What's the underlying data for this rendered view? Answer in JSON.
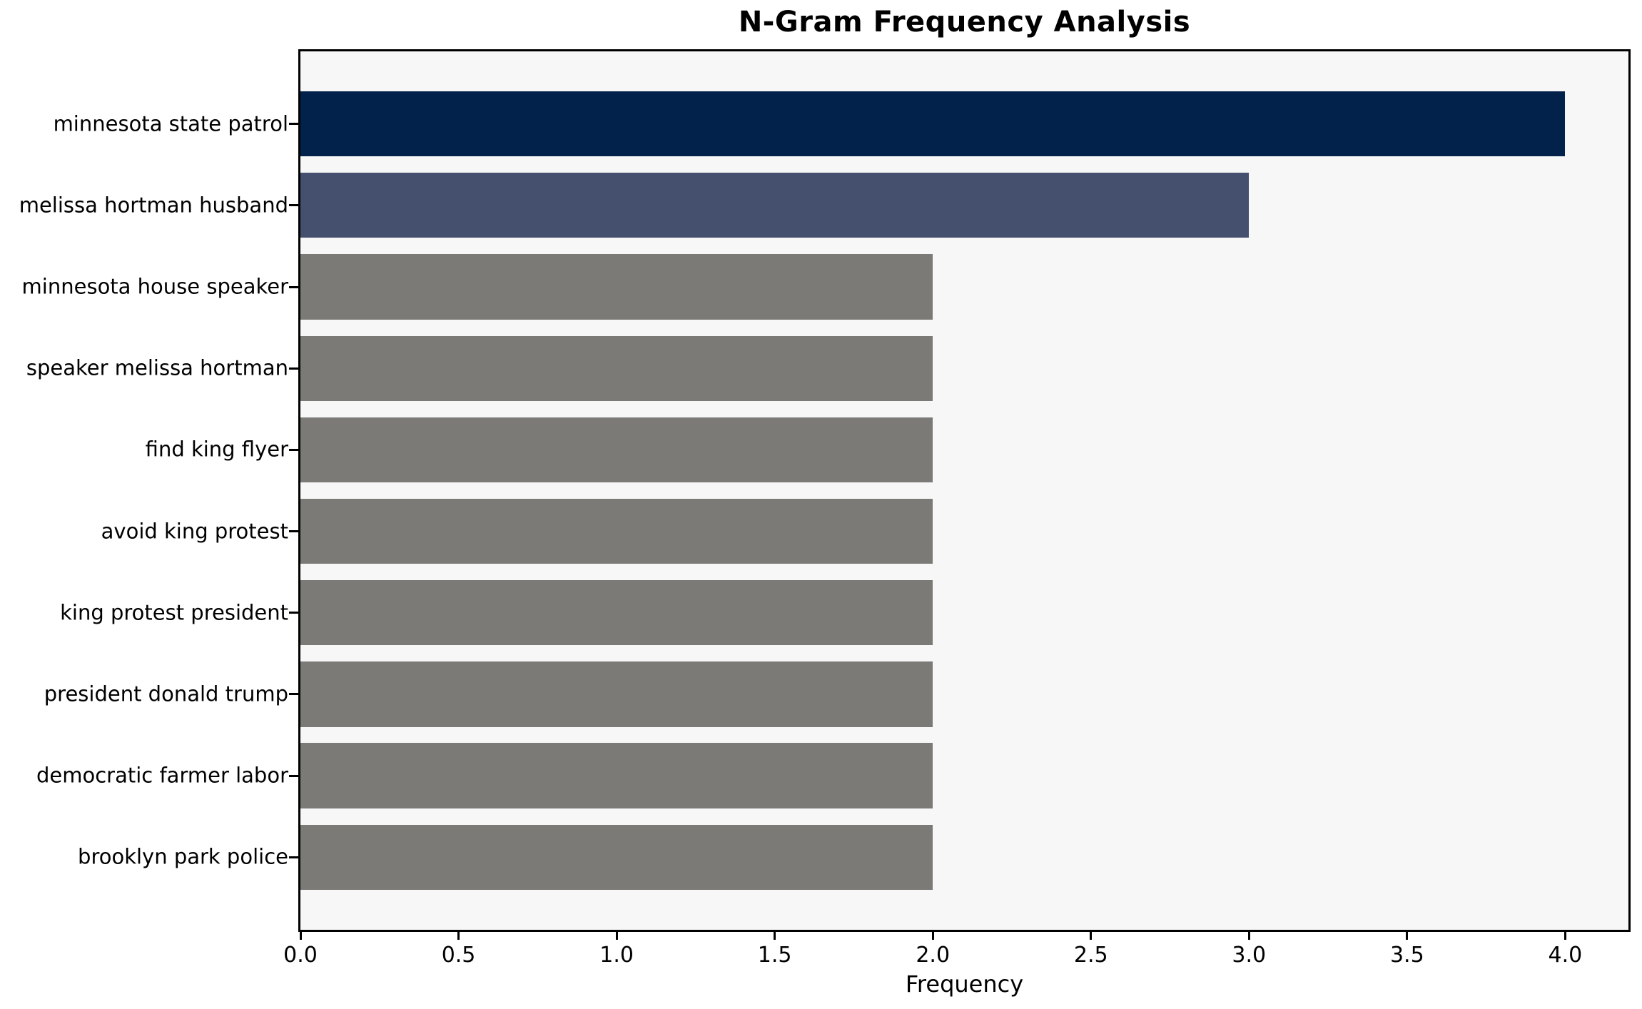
{
  "chart_data": {
    "type": "bar",
    "orientation": "horizontal",
    "title": "N-Gram Frequency Analysis",
    "xlabel": "Frequency",
    "ylabel": "",
    "categories": [
      "minnesota state patrol",
      "melissa hortman husband",
      "minnesota house speaker",
      "speaker melissa hortman",
      "find king flyer",
      "avoid king protest",
      "king protest president",
      "president donald trump",
      "democratic farmer labor",
      "brooklyn park police"
    ],
    "values": [
      4,
      3,
      2,
      2,
      2,
      2,
      2,
      2,
      2,
      2
    ],
    "colors": [
      "#02224c",
      "#45506e",
      "#7b7a77",
      "#7b7a77",
      "#7b7a77",
      "#7b7a77",
      "#7b7a77",
      "#7b7a77",
      "#7b7a77",
      "#7b7a77"
    ],
    "xlim": [
      0,
      4.2
    ],
    "xticks": [
      0.0,
      0.5,
      1.0,
      1.5,
      2.0,
      2.5,
      3.0,
      3.5,
      4.0
    ],
    "tick_decimals": 1,
    "grid": false,
    "legend": "none",
    "plot_background": "#f7f7f7",
    "figure_background": "#ffffff",
    "spine_color": "#000000",
    "text_color": "#000000"
  }
}
